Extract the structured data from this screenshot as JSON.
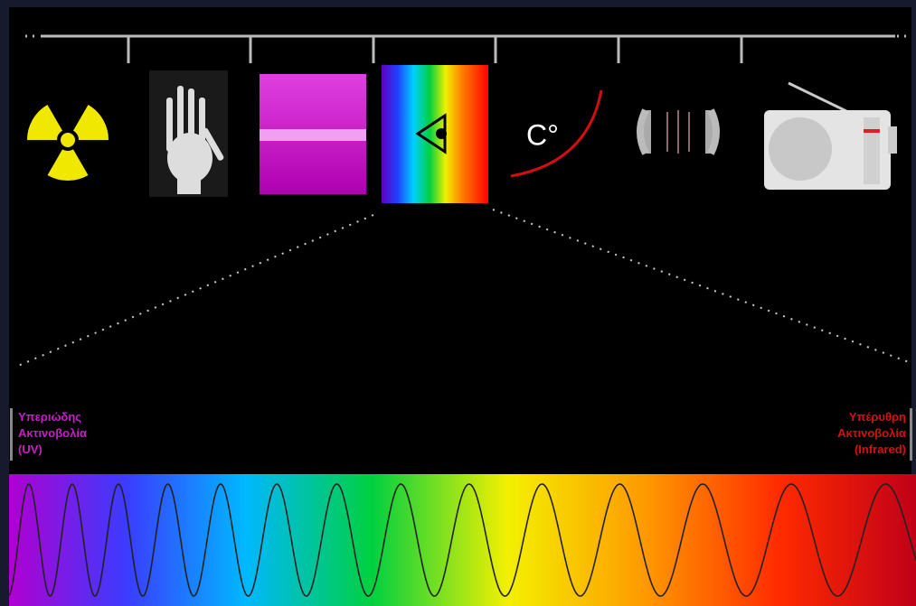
{
  "labels": {
    "uv": [
      "Υπεριώδης",
      "Ακτινοβολία",
      "(UV)"
    ],
    "infrared": [
      "Υπέρυθρη",
      "Ακτινοβολία",
      "(Infrared)"
    ]
  },
  "icon_text": "C°"
}
